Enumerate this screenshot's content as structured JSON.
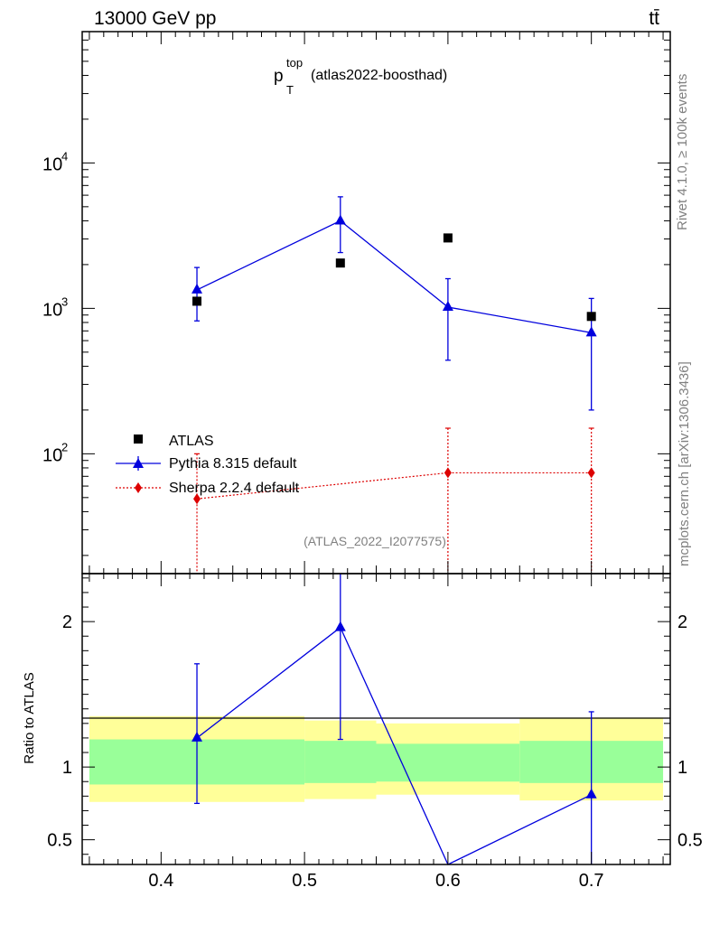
{
  "header": {
    "left_label": "13000 GeV pp",
    "right_label": "tt̄"
  },
  "side": {
    "rivet_label": "Rivet 4.1.0, ≥ 100k events",
    "mcplots_label": "mcplots.cern.ch [arXiv:1306.3436]"
  },
  "colors": {
    "atlas": "#000000",
    "pythia": "#0000dd",
    "sherpa": "#dd0000",
    "band_inner": "#99ff99",
    "band_outer": "#ffff99"
  },
  "chart_data": [
    {
      "type": "scatter",
      "title_main": "p",
      "title_sup": "top",
      "title_sub": "T",
      "title_rest": "(atlas2022-boosthad)",
      "watermark": "(ATLAS_2022_I2077575)",
      "yscale": "log",
      "xlim": [
        0.345,
        0.755
      ],
      "ylim": [
        15,
        80000
      ],
      "y_ticks": [
        {
          "value": 100,
          "base": "10",
          "exp": "2"
        },
        {
          "value": 1000,
          "base": "10",
          "exp": "3"
        },
        {
          "value": 10000,
          "base": "10",
          "exp": "4"
        }
      ],
      "legend": [
        "ATLAS",
        "Pythia 8.315 default",
        "Sherpa 2.2.4 default"
      ],
      "series": [
        {
          "name": "ATLAS",
          "marker": "square",
          "x": [
            0.425,
            0.525,
            0.6,
            0.7
          ],
          "y": [
            1120,
            2050,
            3050,
            880
          ]
        },
        {
          "name": "Pythia 8.315 default",
          "marker": "triangle",
          "x": [
            0.425,
            0.525,
            0.6,
            0.7
          ],
          "y": [
            1340,
            4000,
            1020,
            680
          ],
          "yerr_low": [
            820,
            2420,
            440,
            200
          ],
          "yerr_high": [
            1910,
            5850,
            1600,
            1170
          ]
        },
        {
          "name": "Sherpa 2.2.4 default",
          "marker": "diamond",
          "x": [
            0.425,
            0.6,
            0.7
          ],
          "y": [
            49,
            74,
            74
          ],
          "yerr_low": [
            0,
            0,
            0
          ],
          "yerr_high": [
            100,
            150,
            150
          ]
        }
      ]
    },
    {
      "type": "scatter",
      "ylabel": "Ratio to ATLAS",
      "xlim": [
        0.345,
        0.755
      ],
      "ylim": [
        0.33,
        2.33
      ],
      "x_ticks": [
        "0.4",
        "0.5",
        "0.6",
        "0.7"
      ],
      "x_tick_values": [
        0.4,
        0.5,
        0.6,
        0.7
      ],
      "y_ticks": [
        "0.5",
        "1",
        "2"
      ],
      "y_tick_values": [
        0.5,
        1,
        2
      ],
      "bands": [
        {
          "x0": 0.35,
          "x1": 0.5,
          "inner": [
            0.88,
            1.19
          ],
          "outer": [
            0.76,
            1.35
          ]
        },
        {
          "x0": 0.5,
          "x1": 0.55,
          "inner": [
            0.89,
            1.18
          ],
          "outer": [
            0.78,
            1.32
          ]
        },
        {
          "x0": 0.55,
          "x1": 0.65,
          "inner": [
            0.9,
            1.16
          ],
          "outer": [
            0.81,
            1.3
          ]
        },
        {
          "x0": 0.65,
          "x1": 0.75,
          "inner": [
            0.89,
            1.18
          ],
          "outer": [
            0.77,
            1.34
          ]
        }
      ],
      "series": [
        {
          "name": "Pythia 8.315 default",
          "marker": "triangle",
          "x": [
            0.425,
            0.525,
            0.6,
            0.7
          ],
          "y": [
            1.2,
            1.96,
            0.33,
            0.81
          ],
          "yerr_low": [
            0.75,
            1.19,
            0.33,
            0.33
          ],
          "yerr_high": [
            1.71,
            2.4,
            0.33,
            1.38
          ]
        }
      ]
    }
  ]
}
